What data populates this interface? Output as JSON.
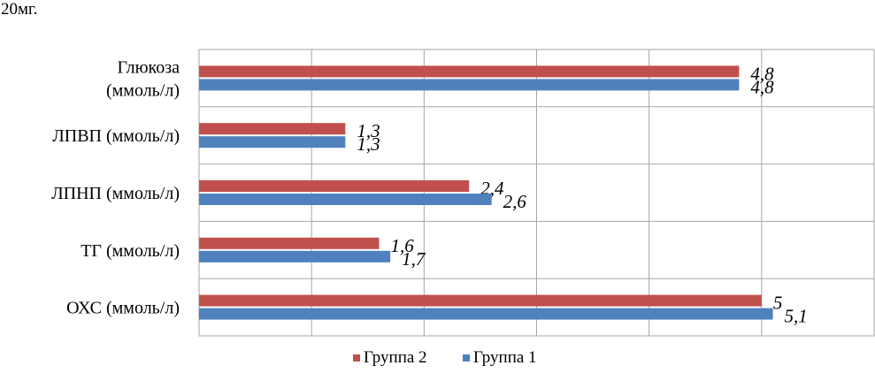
{
  "header_text": "20мг.",
  "chart_data": {
    "type": "bar",
    "orientation": "horizontal",
    "categories": [
      [
        "Глюкоза",
        "(ммоль/л)"
      ],
      [
        "ЛПВП (ммоль/л)"
      ],
      [
        "ЛПНП (ммоль/л)"
      ],
      [
        "ТГ (ммоль/л)"
      ],
      [
        "ОХС (ммоль/л)"
      ]
    ],
    "series": [
      {
        "name": "Группа 2",
        "color": "#c0504d",
        "values": [
          4.8,
          1.3,
          2.4,
          1.6,
          5
        ],
        "labels": [
          "4,8",
          "1,3",
          "2,4",
          "1,6",
          "5"
        ]
      },
      {
        "name": "Группа 1",
        "color": "#4f81bd",
        "values": [
          4.8,
          1.3,
          2.6,
          1.7,
          5.1
        ],
        "labels": [
          "4,8",
          "1,3",
          "2,6",
          "1,7",
          "5,1"
        ]
      }
    ],
    "xlim": [
      0,
      6
    ],
    "grid": true,
    "legend_position": "bottom"
  }
}
